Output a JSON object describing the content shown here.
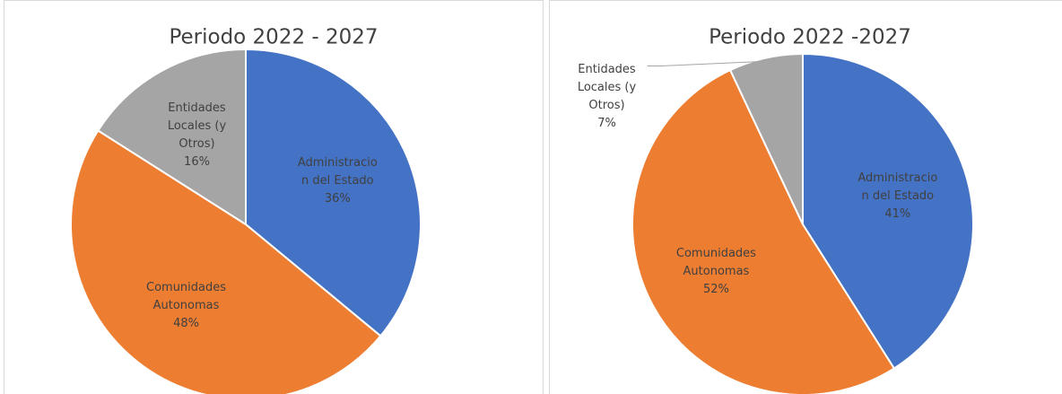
{
  "chart_data": [
    {
      "type": "pie",
      "title": "Periodo 2022 - 2027",
      "categories": [
        "Administracion del Estado",
        "Comunidades Autonomas",
        "Entidades Locales (y Otros)"
      ],
      "values": [
        36,
        48,
        16
      ],
      "value_labels": [
        "36%",
        "48%",
        "16%"
      ],
      "colors": [
        "#4472c4",
        "#ed7d31",
        "#a5a5a5"
      ]
    },
    {
      "type": "pie",
      "title": "Periodo 2022 -2027",
      "categories": [
        "Administracion del Estado",
        "Comunidades Autonomas",
        "Entidades Locales (y Otros)"
      ],
      "values": [
        41,
        52,
        7
      ],
      "value_labels": [
        "41%",
        "52%",
        "7%"
      ],
      "colors": [
        "#4472c4",
        "#ed7d31",
        "#a5a5a5"
      ]
    }
  ]
}
